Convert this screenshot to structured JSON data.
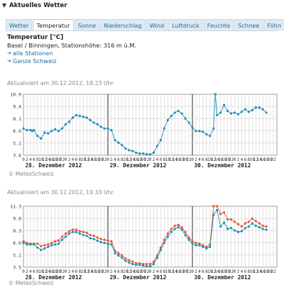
{
  "window": {
    "title": "Aktuelles Wetter"
  },
  "tabs": [
    "Wetter",
    "Temperatur",
    "Sonne",
    "Niederschlag",
    "Wind",
    "Luftdruck",
    "Feuchte",
    "Schnee",
    "Föhn"
  ],
  "active_tab": "Temperatur",
  "header": {
    "title": "Temperatur [°C]",
    "station": "Basel / Binningen, Stationshöhe: 316 m ü.M.",
    "links": [
      "alle Stationen",
      "Ganze Schweiz"
    ]
  },
  "credit": "© MeteoSchweiz",
  "credit2": "© MeteoSchweiz",
  "chart_data": [
    {
      "type": "line",
      "updated": "Aktualisiert am 30.12.2012, 18.23 Uhr",
      "ylim": [
        3.6,
        10.9
      ],
      "yticks": [
        "10.9",
        "9.4",
        "8.1",
        "6.6",
        "5.1",
        "3.6"
      ],
      "x_hour_ticks": [
        "0",
        "2",
        "4",
        "6",
        "8",
        "10",
        "12",
        "14",
        "16",
        "18",
        "20",
        "22"
      ],
      "day_labels": [
        "28. Dezember 2012",
        "29. Dezember 2012",
        "30. Dezember 2012"
      ],
      "grid": true,
      "series": [
        {
          "color": "#1d8fb5",
          "points": [
            [
              0,
              6.8
            ],
            [
              2,
              6.6
            ],
            [
              4,
              6.6
            ],
            [
              5,
              6.5
            ],
            [
              6,
              6.6
            ],
            [
              8,
              5.9
            ],
            [
              10,
              5.6
            ],
            [
              12,
              6.3
            ],
            [
              14,
              6.2
            ],
            [
              16,
              6.5
            ],
            [
              18,
              6.7
            ],
            [
              20,
              6.5
            ],
            [
              22,
              6.8
            ],
            [
              24,
              7.3
            ],
            [
              26,
              7.6
            ],
            [
              28,
              8.1
            ],
            [
              30,
              8.4
            ],
            [
              32,
              8.3
            ],
            [
              34,
              8.2
            ],
            [
              36,
              8.1
            ],
            [
              38,
              7.8
            ],
            [
              40,
              7.5
            ],
            [
              42,
              7.3
            ],
            [
              44,
              7.0
            ],
            [
              46,
              6.8
            ],
            [
              48,
              6.8
            ],
            [
              50,
              6.6
            ],
            [
              52,
              5.4
            ],
            [
              54,
              5.1
            ],
            [
              56,
              4.8
            ],
            [
              58,
              4.4
            ],
            [
              60,
              4.2
            ],
            [
              62,
              4.1
            ],
            [
              64,
              3.9
            ],
            [
              66,
              3.8
            ],
            [
              68,
              3.8
            ],
            [
              70,
              3.7
            ],
            [
              72,
              3.7
            ],
            [
              74,
              3.9
            ],
            [
              76,
              4.7
            ],
            [
              78,
              5.4
            ],
            [
              80,
              6.8
            ],
            [
              82,
              7.8
            ],
            [
              84,
              8.3
            ],
            [
              86,
              8.7
            ],
            [
              88,
              8.9
            ],
            [
              90,
              8.6
            ],
            [
              92,
              8.0
            ],
            [
              94,
              7.5
            ],
            [
              96,
              6.9
            ],
            [
              98,
              6.5
            ],
            [
              100,
              6.5
            ],
            [
              102,
              6.4
            ],
            [
              104,
              6.1
            ],
            [
              106,
              5.9
            ],
            [
              108,
              6.8
            ],
            [
              109,
              10.9
            ],
            [
              110,
              8.4
            ],
            [
              112,
              8.7
            ],
            [
              114,
              9.6
            ],
            [
              116,
              8.9
            ],
            [
              118,
              8.6
            ],
            [
              120,
              8.7
            ],
            [
              122,
              8.5
            ],
            [
              124,
              8.8
            ],
            [
              126,
              9.1
            ],
            [
              128,
              8.8
            ],
            [
              130,
              9.0
            ],
            [
              132,
              9.3
            ],
            [
              134,
              9.3
            ],
            [
              136,
              9.1
            ],
            [
              138,
              8.7
            ]
          ]
        }
      ]
    },
    {
      "type": "line",
      "updated": "Aktualisiert am 30.12.2012, 19.33 Uhr",
      "ylim": [
        3.5,
        11.3
      ],
      "yticks": [
        "11.3",
        "9.8",
        "8.3",
        "6.6",
        "5.1",
        "3.5"
      ],
      "x_hour_ticks": [
        "0",
        "2",
        "4",
        "6",
        "8",
        "10",
        "12",
        "14",
        "16",
        "18",
        "20",
        "22"
      ],
      "day_labels": [
        "28. Dezember 2012",
        "29. Dezember 2012",
        "30. Dezember 2012"
      ],
      "grid": true,
      "series": [
        {
          "color": "#e5553a",
          "points": [
            [
              0,
              6.8
            ],
            [
              2,
              6.6
            ],
            [
              4,
              6.5
            ],
            [
              6,
              6.5
            ],
            [
              8,
              6.5
            ],
            [
              10,
              6.2
            ],
            [
              12,
              6.3
            ],
            [
              14,
              6.4
            ],
            [
              16,
              6.6
            ],
            [
              18,
              6.8
            ],
            [
              20,
              6.9
            ],
            [
              22,
              7.4
            ],
            [
              24,
              7.8
            ],
            [
              26,
              8.1
            ],
            [
              28,
              8.3
            ],
            [
              30,
              8.3
            ],
            [
              32,
              8.1
            ],
            [
              34,
              8.0
            ],
            [
              36,
              7.9
            ],
            [
              38,
              7.6
            ],
            [
              40,
              7.5
            ],
            [
              42,
              7.3
            ],
            [
              44,
              7.1
            ],
            [
              46,
              7.0
            ],
            [
              48,
              6.9
            ],
            [
              50,
              6.8
            ],
            [
              52,
              5.6
            ],
            [
              54,
              5.3
            ],
            [
              56,
              5.0
            ],
            [
              58,
              4.6
            ],
            [
              60,
              4.4
            ],
            [
              62,
              4.2
            ],
            [
              64,
              4.0
            ],
            [
              66,
              4.0
            ],
            [
              68,
              3.9
            ],
            [
              70,
              3.9
            ],
            [
              72,
              3.9
            ],
            [
              74,
              4.2
            ],
            [
              76,
              5.0
            ],
            [
              78,
              6.0
            ],
            [
              80,
              7.0
            ],
            [
              82,
              7.8
            ],
            [
              84,
              8.4
            ],
            [
              86,
              8.8
            ],
            [
              88,
              8.9
            ],
            [
              90,
              8.6
            ],
            [
              92,
              8.0
            ],
            [
              94,
              7.3
            ],
            [
              96,
              6.8
            ],
            [
              98,
              6.6
            ],
            [
              100,
              6.5
            ],
            [
              102,
              6.3
            ],
            [
              104,
              6.1
            ],
            [
              106,
              6.4
            ],
            [
              108,
              11.3
            ],
            [
              110,
              11.3
            ],
            [
              112,
              10.3
            ],
            [
              114,
              10.5
            ],
            [
              116,
              9.6
            ],
            [
              118,
              9.6
            ],
            [
              120,
              9.3
            ],
            [
              122,
              9.0
            ],
            [
              124,
              8.7
            ],
            [
              126,
              9.1
            ],
            [
              128,
              9.3
            ],
            [
              130,
              9.7
            ],
            [
              132,
              9.4
            ],
            [
              134,
              9.1
            ],
            [
              136,
              8.8
            ],
            [
              138,
              8.7
            ]
          ]
        },
        {
          "color": "#1d8fb5",
          "points": [
            [
              0,
              6.6
            ],
            [
              2,
              6.4
            ],
            [
              4,
              6.4
            ],
            [
              6,
              6.4
            ],
            [
              8,
              6.0
            ],
            [
              10,
              5.7
            ],
            [
              12,
              5.9
            ],
            [
              14,
              6.1
            ],
            [
              16,
              6.3
            ],
            [
              18,
              6.4
            ],
            [
              20,
              6.5
            ],
            [
              22,
              7.0
            ],
            [
              24,
              7.4
            ],
            [
              26,
              7.8
            ],
            [
              28,
              8.0
            ],
            [
              30,
              8.0
            ],
            [
              32,
              7.8
            ],
            [
              34,
              7.6
            ],
            [
              36,
              7.5
            ],
            [
              38,
              7.2
            ],
            [
              40,
              7.1
            ],
            [
              42,
              6.9
            ],
            [
              44,
              6.7
            ],
            [
              46,
              6.6
            ],
            [
              48,
              6.5
            ],
            [
              50,
              6.4
            ],
            [
              52,
              5.3
            ],
            [
              54,
              5.0
            ],
            [
              56,
              4.7
            ],
            [
              58,
              4.3
            ],
            [
              60,
              4.1
            ],
            [
              62,
              3.9
            ],
            [
              64,
              3.8
            ],
            [
              66,
              3.8
            ],
            [
              68,
              3.7
            ],
            [
              70,
              3.6
            ],
            [
              72,
              3.6
            ],
            [
              74,
              3.9
            ],
            [
              76,
              4.7
            ],
            [
              78,
              5.7
            ],
            [
              80,
              6.6
            ],
            [
              82,
              7.4
            ],
            [
              84,
              8.0
            ],
            [
              86,
              8.4
            ],
            [
              88,
              8.6
            ],
            [
              90,
              8.3
            ],
            [
              92,
              7.6
            ],
            [
              94,
              7.0
            ],
            [
              96,
              6.5
            ],
            [
              98,
              6.3
            ],
            [
              100,
              6.3
            ],
            [
              102,
              6.1
            ],
            [
              104,
              5.9
            ],
            [
              106,
              6.1
            ],
            [
              108,
              10.2
            ],
            [
              110,
              10.8
            ],
            [
              112,
              8.7
            ],
            [
              114,
              9.2
            ],
            [
              116,
              8.4
            ],
            [
              118,
              8.5
            ],
            [
              120,
              8.2
            ],
            [
              122,
              8.0
            ],
            [
              124,
              8.1
            ],
            [
              126,
              8.5
            ],
            [
              128,
              8.7
            ],
            [
              130,
              9.1
            ],
            [
              132,
              8.8
            ],
            [
              134,
              8.6
            ],
            [
              136,
              8.4
            ],
            [
              138,
              8.3
            ]
          ]
        }
      ]
    }
  ]
}
